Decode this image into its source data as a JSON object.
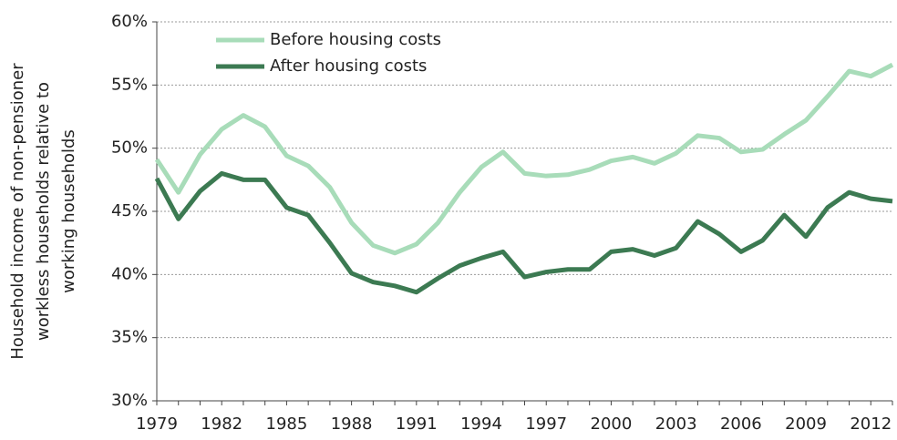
{
  "chart_data": {
    "type": "line",
    "ylabel": [
      "Household income of non-pensioner",
      "workless households relative to",
      "working households"
    ],
    "x": [
      1979,
      1980,
      1981,
      1982,
      1983,
      1984,
      1985,
      1986,
      1987,
      1988,
      1989,
      1990,
      1991,
      1992,
      1993,
      1994,
      1995,
      1996,
      1997,
      1998,
      1999,
      2000,
      2001,
      2002,
      2003,
      2004,
      2005,
      2006,
      2007,
      2008,
      2009,
      2010,
      2011,
      2012,
      2013
    ],
    "series": [
      {
        "name": "Before housing costs",
        "color": "#a8dcb9",
        "values": [
          49.1,
          46.5,
          49.5,
          51.5,
          52.6,
          51.7,
          49.4,
          48.6,
          46.9,
          44.1,
          42.3,
          41.7,
          42.4,
          44.1,
          46.5,
          48.5,
          49.7,
          48.0,
          47.8,
          47.9,
          48.3,
          49.0,
          49.3,
          48.8,
          49.6,
          51.0,
          50.8,
          49.7,
          49.9,
          51.1,
          52.2,
          54.1,
          56.1,
          55.7,
          56.6
        ]
      },
      {
        "name": "After housing costs",
        "color": "#3c7a52",
        "values": [
          47.6,
          44.4,
          46.6,
          48.0,
          47.5,
          47.5,
          45.3,
          44.7,
          42.5,
          40.1,
          39.4,
          39.1,
          38.6,
          39.7,
          40.7,
          41.3,
          41.8,
          39.8,
          40.2,
          40.4,
          40.4,
          41.8,
          42.0,
          41.5,
          42.1,
          44.2,
          43.2,
          41.8,
          42.7,
          44.7,
          43.0,
          45.3,
          46.5,
          46.0,
          45.8
        ]
      }
    ],
    "xlim": [
      1979,
      2013
    ],
    "xticks": [
      1979,
      1982,
      1985,
      1988,
      1991,
      1994,
      1997,
      2000,
      2003,
      2006,
      2009,
      2012
    ],
    "ylim": [
      30,
      60
    ],
    "yticks": [
      {
        "value": 30,
        "label": "30%"
      },
      {
        "value": 35,
        "label": "35%"
      },
      {
        "value": 40,
        "label": "40%"
      },
      {
        "value": 45,
        "label": "45%"
      },
      {
        "value": 50,
        "label": "50%"
      },
      {
        "value": 55,
        "label": "55%"
      },
      {
        "value": 60,
        "label": "60%"
      }
    ],
    "grid": true,
    "legend": "top-left"
  }
}
